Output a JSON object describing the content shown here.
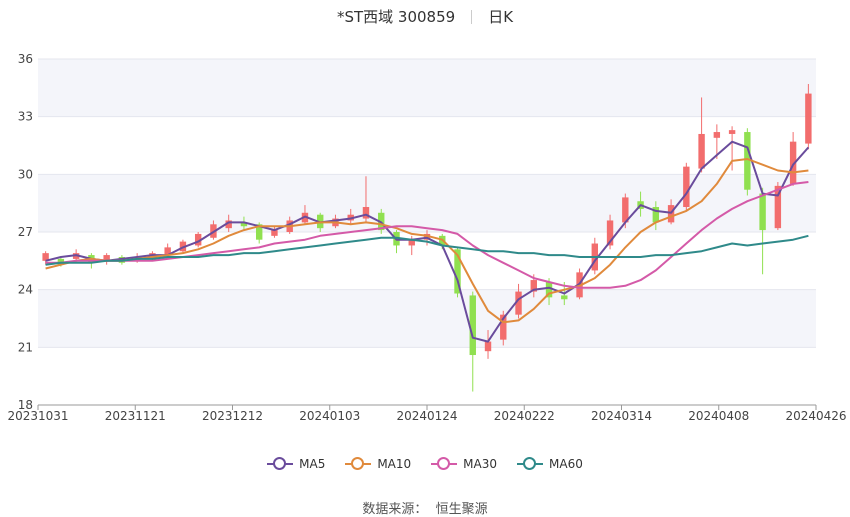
{
  "header": {
    "title": "*ST西域 300859",
    "period": "日K"
  },
  "source": {
    "label": "数据来源：",
    "value": "恒生聚源"
  },
  "chart_data": {
    "type": "candlestick",
    "title": "*ST西域 300859",
    "ylim": [
      18,
      36
    ],
    "y_ticks": [
      "18",
      "21",
      "24",
      "27",
      "30",
      "33",
      "36"
    ],
    "x_ticks": [
      "20231031",
      "20231121",
      "20231212",
      "20240103",
      "20240124",
      "20240222",
      "20240314",
      "20240408",
      "20240426"
    ],
    "grid": true,
    "legend_position": "bottom",
    "colors": {
      "up": "#f26d6d",
      "down": "#90e050",
      "ma5": "#6a4c9c",
      "ma10": "#e08a3c",
      "ma30": "#d45aa8",
      "ma60": "#2f8a8a"
    },
    "series": [
      {
        "name": "MA5",
        "values": [
          25.5,
          25.7,
          25.8,
          25.6,
          25.5,
          25.6,
          25.7,
          25.8,
          25.8,
          26.2,
          26.5,
          27.0,
          27.5,
          27.5,
          27.3,
          27.1,
          27.4,
          27.8,
          27.5,
          27.6,
          27.7,
          27.9,
          27.5,
          26.6,
          26.6,
          26.7,
          26.3,
          24.5,
          21.5,
          21.3,
          22.5,
          23.5,
          24.0,
          24.1,
          23.8,
          24.3,
          25.5,
          26.5,
          27.5,
          28.4,
          28.1,
          28.0,
          29.0,
          30.3,
          31.0,
          31.7,
          31.4,
          29.0,
          28.9,
          30.5,
          31.4
        ]
      },
      {
        "name": "MA10",
        "values": [
          25.1,
          25.3,
          25.5,
          25.6,
          25.5,
          25.5,
          25.6,
          25.7,
          25.8,
          25.9,
          26.1,
          26.4,
          26.8,
          27.1,
          27.3,
          27.3,
          27.3,
          27.4,
          27.5,
          27.5,
          27.4,
          27.5,
          27.4,
          27.2,
          26.9,
          26.8,
          26.6,
          25.8,
          24.3,
          22.9,
          22.3,
          22.4,
          23.0,
          23.8,
          24.0,
          24.2,
          24.6,
          25.3,
          26.2,
          27.0,
          27.5,
          27.8,
          28.1,
          28.6,
          29.5,
          30.7,
          30.8,
          30.5,
          30.2,
          30.1,
          30.2
        ]
      },
      {
        "name": "MA30",
        "values": [
          25.4,
          25.4,
          25.5,
          25.5,
          25.5,
          25.5,
          25.5,
          25.5,
          25.6,
          25.7,
          25.8,
          25.9,
          26.0,
          26.1,
          26.2,
          26.4,
          26.5,
          26.6,
          26.8,
          26.9,
          27.0,
          27.1,
          27.2,
          27.3,
          27.3,
          27.2,
          27.1,
          26.9,
          26.3,
          25.8,
          25.4,
          25.0,
          24.6,
          24.4,
          24.2,
          24.1,
          24.1,
          24.1,
          24.2,
          24.5,
          25.0,
          25.7,
          26.4,
          27.1,
          27.7,
          28.2,
          28.6,
          28.9,
          29.2,
          29.5,
          29.6
        ]
      },
      {
        "name": "MA60",
        "values": [
          25.3,
          25.4,
          25.4,
          25.4,
          25.5,
          25.5,
          25.6,
          25.6,
          25.7,
          25.7,
          25.7,
          25.8,
          25.8,
          25.9,
          25.9,
          26.0,
          26.1,
          26.2,
          26.3,
          26.4,
          26.5,
          26.6,
          26.7,
          26.7,
          26.6,
          26.5,
          26.3,
          26.2,
          26.1,
          26.0,
          26.0,
          25.9,
          25.9,
          25.8,
          25.8,
          25.7,
          25.7,
          25.7,
          25.7,
          25.7,
          25.8,
          25.8,
          25.9,
          26.0,
          26.2,
          26.4,
          26.3,
          26.4,
          26.5,
          26.6,
          26.8
        ]
      }
    ],
    "candles": [
      [
        25.5,
        25.9,
        26.0,
        25.3
      ],
      [
        25.6,
        25.3,
        25.7,
        25.2
      ],
      [
        25.6,
        25.9,
        26.1,
        25.4
      ],
      [
        25.8,
        25.4,
        25.9,
        25.1
      ],
      [
        25.5,
        25.8,
        25.9,
        25.3
      ],
      [
        25.7,
        25.4,
        25.8,
        25.3
      ],
      [
        25.5,
        25.7,
        25.9,
        25.4
      ],
      [
        25.6,
        25.9,
        26.0,
        25.5
      ],
      [
        25.8,
        26.2,
        26.4,
        25.7
      ],
      [
        26.0,
        26.5,
        26.6,
        25.9
      ],
      [
        26.3,
        26.9,
        27.0,
        26.2
      ],
      [
        26.7,
        27.4,
        27.6,
        26.6
      ],
      [
        27.2,
        27.6,
        27.9,
        27.0
      ],
      [
        27.5,
        27.3,
        27.8,
        27.1
      ],
      [
        27.4,
        26.6,
        27.5,
        26.4
      ],
      [
        26.8,
        27.1,
        27.3,
        26.7
      ],
      [
        27.0,
        27.6,
        27.8,
        26.9
      ],
      [
        27.5,
        28.0,
        28.4,
        27.4
      ],
      [
        27.9,
        27.2,
        28.0,
        27.0
      ],
      [
        27.3,
        27.7,
        27.9,
        27.2
      ],
      [
        27.6,
        27.9,
        28.2,
        27.4
      ],
      [
        27.7,
        28.3,
        29.9,
        27.5
      ],
      [
        28.0,
        27.1,
        28.2,
        26.9
      ],
      [
        27.0,
        26.3,
        27.1,
        25.9
      ],
      [
        26.3,
        26.6,
        26.8,
        25.8
      ],
      [
        26.6,
        26.9,
        27.1,
        26.3
      ],
      [
        26.8,
        26.3,
        26.9,
        26.1
      ],
      [
        26.1,
        23.8,
        26.2,
        23.6
      ],
      [
        23.7,
        20.6,
        23.9,
        18.7
      ],
      [
        20.8,
        21.3,
        21.9,
        20.4
      ],
      [
        21.4,
        22.7,
        22.9,
        21.1
      ],
      [
        22.7,
        23.9,
        24.3,
        22.5
      ],
      [
        23.9,
        24.5,
        24.8,
        23.6
      ],
      [
        24.4,
        23.6,
        24.6,
        23.2
      ],
      [
        23.7,
        23.5,
        24.4,
        23.2
      ],
      [
        23.6,
        24.9,
        25.1,
        23.5
      ],
      [
        25.0,
        26.4,
        26.7,
        24.8
      ],
      [
        26.3,
        27.6,
        27.9,
        26.1
      ],
      [
        27.5,
        28.8,
        29.0,
        27.2
      ],
      [
        28.6,
        28.2,
        29.1,
        27.8
      ],
      [
        28.3,
        27.5,
        28.6,
        27.1
      ],
      [
        27.5,
        28.4,
        28.7,
        27.4
      ],
      [
        28.3,
        30.4,
        30.6,
        28.1
      ],
      [
        30.3,
        32.1,
        34.0,
        30.1
      ],
      [
        31.9,
        32.2,
        32.6,
        30.8
      ],
      [
        32.1,
        32.3,
        32.5,
        30.2
      ],
      [
        32.2,
        29.2,
        32.4,
        28.9
      ],
      [
        29.0,
        27.1,
        29.3,
        24.8
      ],
      [
        27.2,
        29.4,
        29.6,
        27.1
      ],
      [
        29.5,
        31.7,
        32.2,
        29.4
      ],
      [
        31.6,
        34.2,
        34.7,
        31.3
      ]
    ]
  }
}
